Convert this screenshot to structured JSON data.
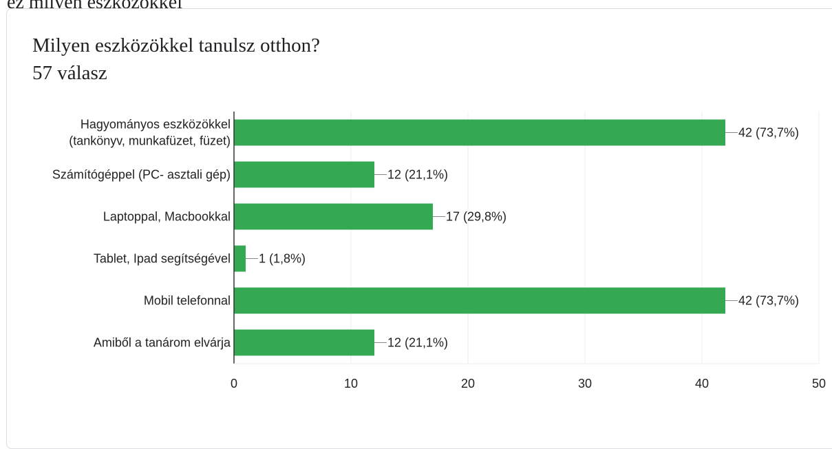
{
  "page": {
    "top_fragment": "ez milyen eszközökkel",
    "title": "Milyen eszközökkel tanulsz otthon?",
    "response_count": "57 válasz"
  },
  "colors": {
    "bar": "#34a853",
    "grid": "#eeeeee",
    "axis": "#333333",
    "leader": "#888888"
  },
  "chart_data": {
    "type": "bar",
    "orientation": "horizontal",
    "categories": [
      [
        "Hagyományos eszközökkel",
        "(tankönyv, munkafüzet, füzet)"
      ],
      [
        "Számítógéppel (PC- asztali gép)"
      ],
      [
        "Laptoppal, Macbookkal"
      ],
      [
        "Tablet, Ipad segítségével"
      ],
      [
        "Mobil telefonnal"
      ],
      [
        "Amiből a tanárom elvárja"
      ]
    ],
    "values": [
      42,
      12,
      17,
      1,
      42,
      12
    ],
    "value_labels": [
      "42 (73,7%)",
      "12 (21,1%)",
      "17 (29,8%)",
      "1 (1,8%)",
      "42 (73,7%)",
      "12 (21,1%)"
    ],
    "xlim": [
      0,
      50
    ],
    "x_ticks": [
      0,
      10,
      20,
      30,
      40,
      50
    ],
    "grid": true,
    "title": "Milyen eszközökkel tanulsz otthon?"
  }
}
